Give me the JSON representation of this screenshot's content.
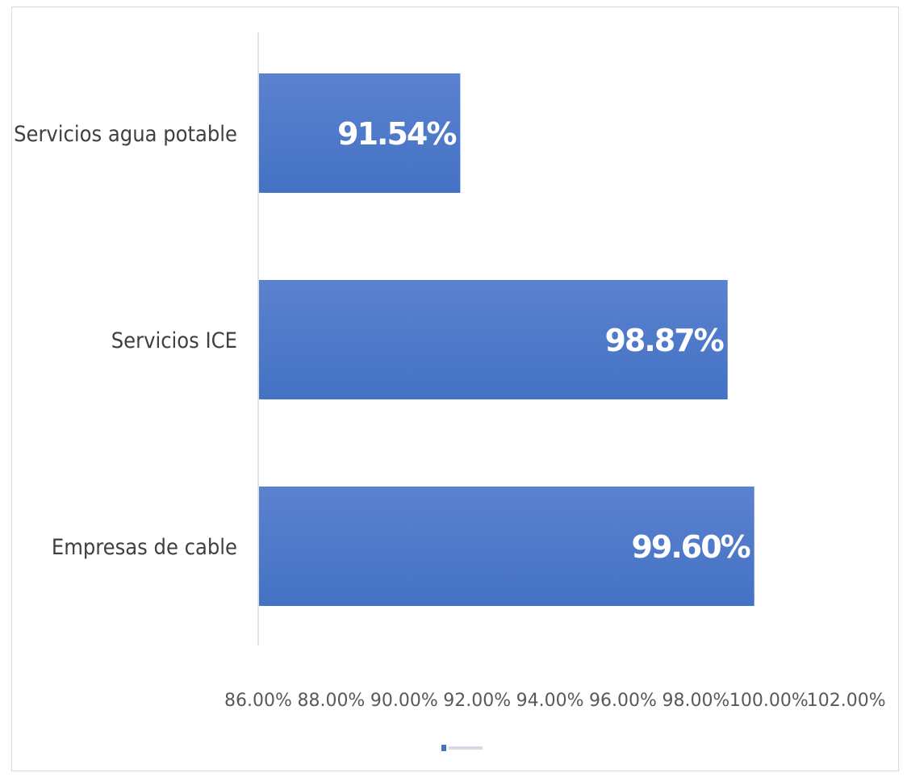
{
  "chart_data": {
    "type": "bar",
    "orientation": "horizontal",
    "categories": [
      "Servicios agua potable",
      "Servicios ICE",
      "Empresas de cable"
    ],
    "values": [
      91.54,
      98.87,
      99.6
    ],
    "data_labels": [
      "91.54%",
      "98.87%",
      "99.60%"
    ],
    "xlim": [
      86,
      102
    ],
    "x_ticks": [
      86,
      88,
      90,
      92,
      94,
      96,
      98,
      100,
      102
    ],
    "x_tick_labels": [
      "86.00%",
      "88.00%",
      "90.00%",
      "92.00%",
      "94.00%",
      "96.00%",
      "98.00%",
      "100.00%",
      "102.00%"
    ],
    "grid": false,
    "legend": {
      "position": "bottom"
    },
    "bar_color": "#4472c4",
    "bar_color_light": "#5b82cf"
  }
}
